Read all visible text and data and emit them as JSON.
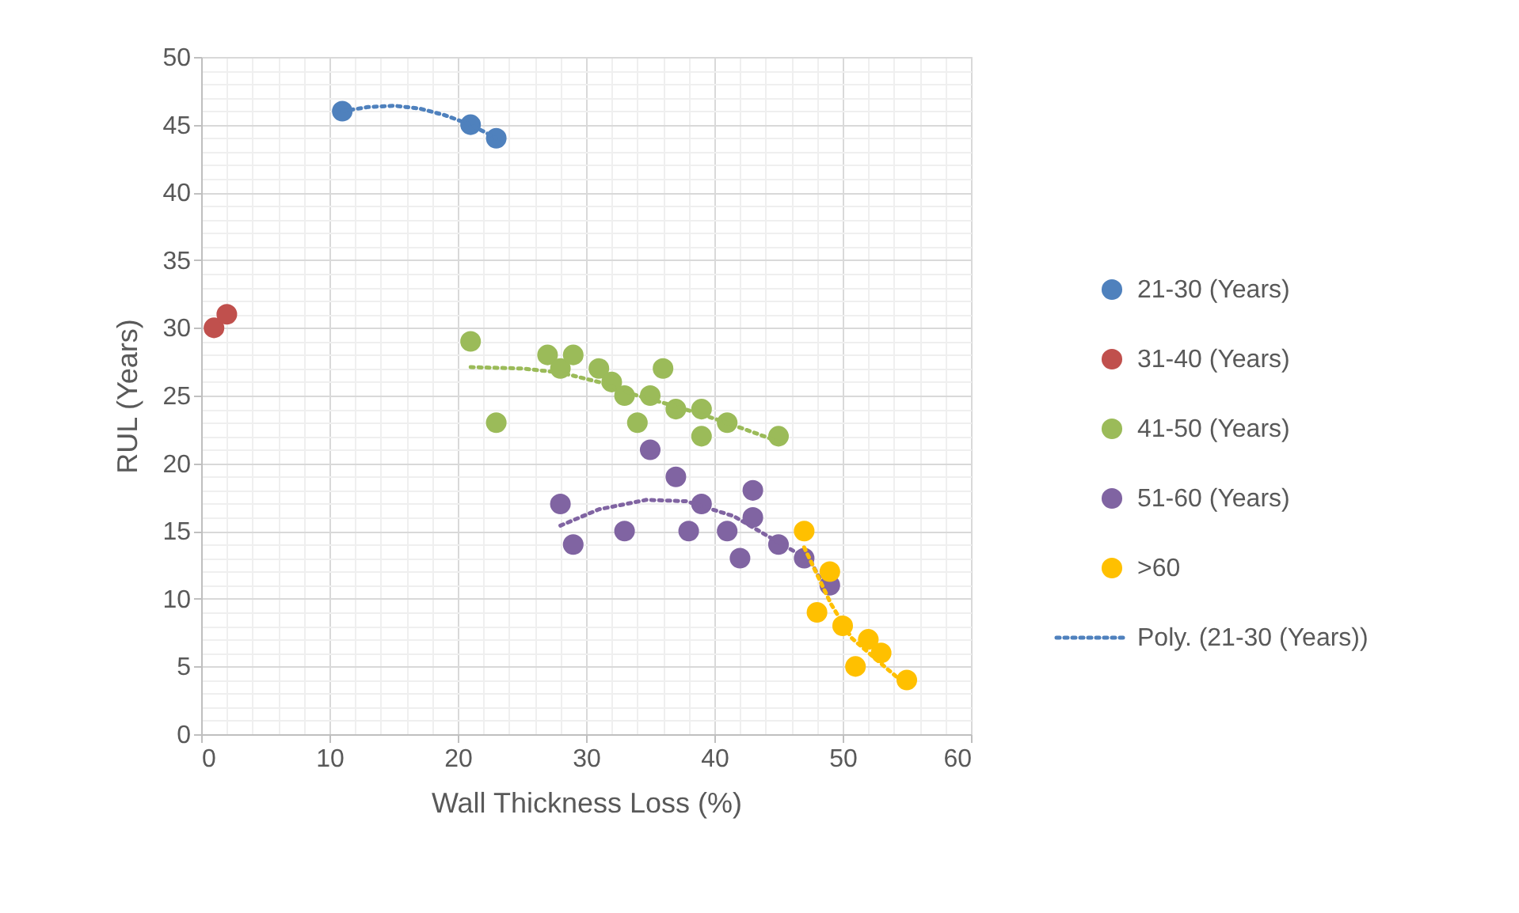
{
  "chart_data": {
    "type": "scatter",
    "xlabel": "Wall Thickness Loss (%)",
    "ylabel": "RUL (Years)",
    "xlim": [
      0,
      60
    ],
    "xticks": [
      0,
      10,
      20,
      30,
      40,
      50,
      60
    ],
    "ylim": [
      0,
      50
    ],
    "yticks": [
      0,
      5,
      10,
      15,
      20,
      25,
      30,
      35,
      40,
      45,
      50
    ],
    "grid": true,
    "legend": "right",
    "marker": "circle",
    "series": [
      {
        "name": "21-30 (Years)",
        "color": "#4f81bd",
        "x": [
          11,
          21,
          23
        ],
        "values": [
          46,
          45,
          44
        ]
      },
      {
        "name": "31-40 (Years)",
        "color": "#c0504d",
        "x": [
          1,
          2
        ],
        "values": [
          30,
          31
        ]
      },
      {
        "name": "41-50 (Years)",
        "color": "#9bbb59",
        "x": [
          21,
          23,
          27,
          28,
          29,
          31,
          32,
          33,
          34,
          35,
          36,
          37,
          39,
          39,
          41,
          45
        ],
        "values": [
          29,
          23,
          28,
          27,
          28,
          27,
          26,
          25,
          23,
          25,
          27,
          24,
          24,
          22,
          23,
          22
        ]
      },
      {
        "name": "51-60 (Years)",
        "color": "#8064a2",
        "x": [
          28,
          29,
          33,
          35,
          37,
          38,
          39,
          41,
          42,
          43,
          43,
          45,
          47,
          49
        ],
        "values": [
          17,
          14,
          15,
          21,
          19,
          15,
          17,
          15,
          13,
          18,
          16,
          14,
          13,
          11
        ]
      },
      {
        "name": ">60",
        "color": "#ffc000",
        "x": [
          47,
          48,
          49,
          50,
          51,
          52,
          53,
          55
        ],
        "values": [
          15,
          9,
          12,
          8,
          5,
          7,
          6,
          4
        ]
      },
      {
        "name": "Poly. (21-30 (Years))",
        "type": "line",
        "line_style": "dotted",
        "marker": "none",
        "color": "#4f81bd",
        "x": [
          11,
          13,
          15,
          17,
          19,
          21,
          23
        ],
        "values": [
          46,
          46.3,
          46.4,
          46.2,
          45.7,
          45,
          44
        ]
      },
      {
        "type": "line",
        "line_style": "dotted",
        "marker": "none",
        "color": "#9bbb59",
        "x": [
          21,
          25,
          28,
          31,
          34,
          37,
          40,
          43,
          45
        ],
        "values": [
          27.1,
          27,
          26.7,
          26,
          25,
          24.2,
          23.3,
          22.3,
          21.6
        ]
      },
      {
        "type": "line",
        "line_style": "dotted",
        "marker": "none",
        "color": "#8064a2",
        "x": [
          28,
          31,
          34.7,
          37.8,
          41.5,
          44.4,
          47.5,
          48.8
        ],
        "values": [
          15.4,
          16.6,
          17.3,
          17.2,
          16.1,
          14.5,
          12.8,
          10.4
        ]
      },
      {
        "type": "line",
        "line_style": "dotted",
        "marker": "none",
        "color": "#ffc000",
        "x": [
          47,
          47.9,
          49.1,
          50.7,
          53.5,
          55
        ],
        "values": [
          13.8,
          12,
          9.6,
          7.1,
          4.8,
          3.6
        ]
      }
    ]
  }
}
